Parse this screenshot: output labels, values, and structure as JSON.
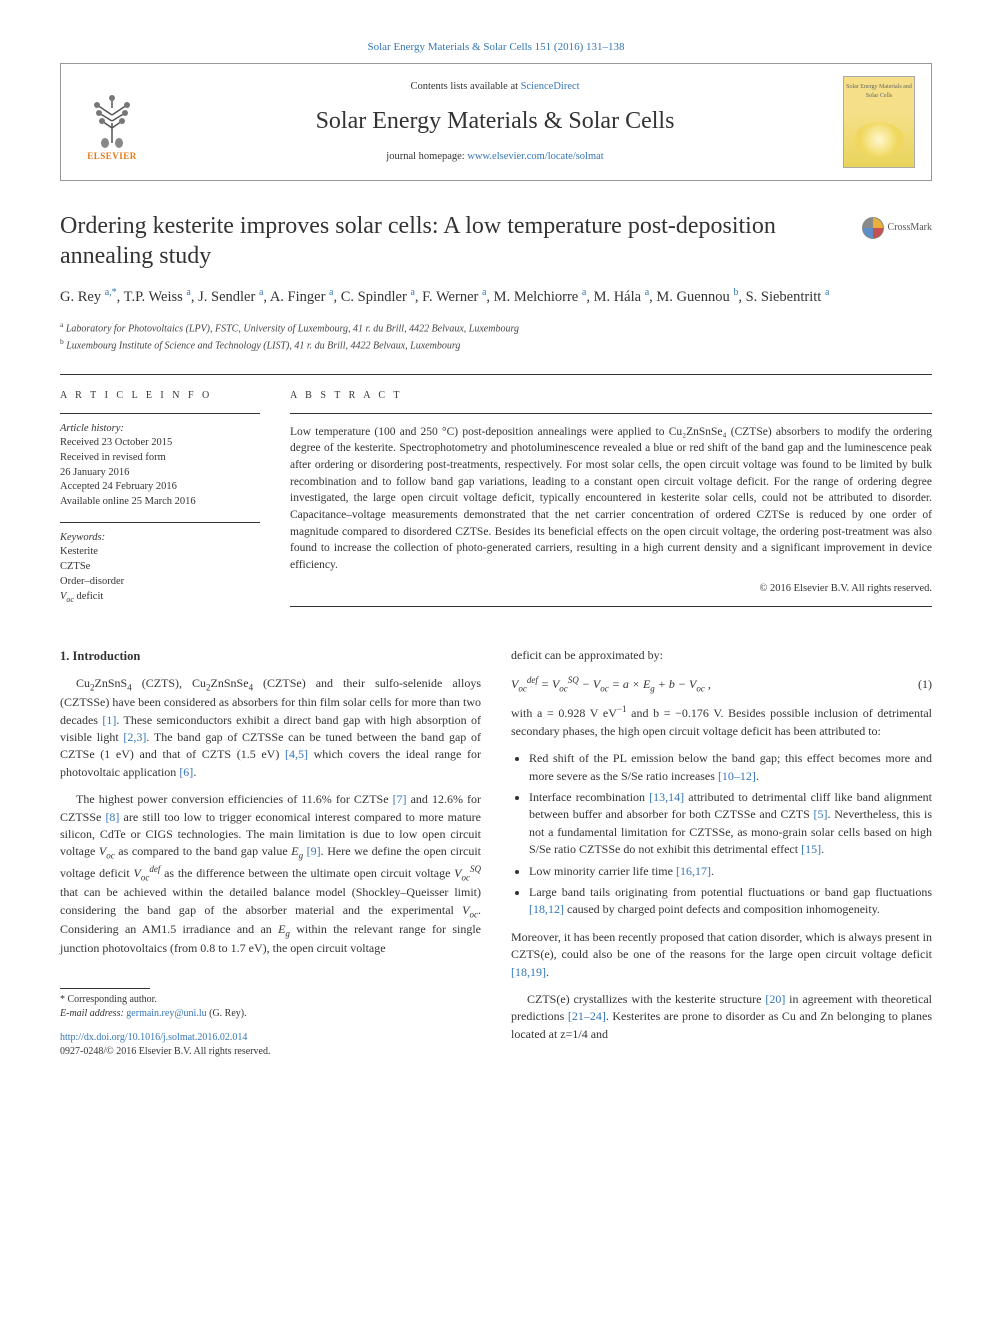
{
  "header": {
    "top_citation": "Solar Energy Materials & Solar Cells 151 (2016) 131–138",
    "contents_prefix": "Contents lists available at ",
    "contents_link": "ScienceDirect",
    "journal_name": "Solar Energy Materials & Solar Cells",
    "homepage_prefix": "journal homepage: ",
    "homepage_link": "www.elsevier.com/locate/solmat",
    "elsevier_label": "ELSEVIER",
    "cover_text": "Solar Energy Materials and Solar Cells",
    "crossmark_label": "CrossMark"
  },
  "article": {
    "title": "Ordering kesterite improves solar cells: A low temperature post-deposition annealing study",
    "authors_html": "G. Rey <sup class='author-link'>a,</sup><sup>*</sup>, T.P. Weiss <sup class='author-link'>a</sup>, J. Sendler <sup class='author-link'>a</sup>, A. Finger <sup class='author-link'>a</sup>, C. Spindler <sup class='author-link'>a</sup>, F. Werner <sup class='author-link'>a</sup>, M. Melchiorre <sup class='author-link'>a</sup>, M. Hála <sup class='author-link'>a</sup>, M. Guennou <sup class='author-link'>b</sup>, S. Siebentritt <sup class='author-link'>a</sup>",
    "affiliations": [
      {
        "marker": "a",
        "text": "Laboratory for Photovoltaics (LPV), FSTC, University of Luxembourg, 41 r. du Brill, 4422 Belvaux, Luxembourg"
      },
      {
        "marker": "b",
        "text": "Luxembourg Institute of Science and Technology (LIST), 41 r. du Brill, 4422 Belvaux, Luxembourg"
      }
    ]
  },
  "article_info": {
    "heading": "A R T I C L E  I N F O",
    "history_label": "Article history:",
    "history": [
      "Received 23 October 2015",
      "Received in revised form",
      "26 January 2016",
      "Accepted 24 February 2016",
      "Available online 25 March 2016"
    ],
    "keywords_label": "Keywords:",
    "keywords": [
      "Kesterite",
      "CZTSe",
      "Order–disorder",
      "V_oc deficit"
    ]
  },
  "abstract": {
    "heading": "A B S T R A C T",
    "text": "Low temperature (100 and 250 °C) post-deposition annealings were applied to Cu₂ZnSnSe₄ (CZTSe) absorbers to modify the ordering degree of the kesterite. Spectrophotometry and photoluminescence revealed a blue or red shift of the band gap and the luminescence peak after ordering or disordering post-treatments, respectively. For most solar cells, the open circuit voltage was found to be limited by bulk recombination and to follow band gap variations, leading to a constant open circuit voltage deficit. For the range of ordering degree investigated, the large open circuit voltage deficit, typically encountered in kesterite solar cells, could not be attributed to disorder. Capacitance–voltage measurements demonstrated that the net carrier concentration of ordered CZTSe is reduced by one order of magnitude compared to disordered CZTSe. Besides its beneficial effects on the open circuit voltage, the ordering post-treatment was also found to increase the collection of photo-generated carriers, resulting in a high current density and a significant improvement in device efficiency.",
    "copyright": "© 2016 Elsevier B.V. All rights reserved."
  },
  "body": {
    "intro_heading": "1.  Introduction",
    "left": {
      "p1": "Cu₂ZnSnS₄ (CZTS), Cu₂ZnSnSe₄ (CZTSe) and their sulfo-selenide alloys (CZTSSe) have been considered as absorbers for thin film solar cells for more than two decades [1]. These semiconductors exhibit a direct band gap with high absorption of visible light [2,3]. The band gap of CZTSSe can be tuned between the band gap of CZTSe (1 eV) and that of CZTS (1.5 eV) [4,5] which covers the ideal range for photovoltaic application [6].",
      "p2": "The highest power conversion efficiencies of 11.6% for CZTSe [7] and 12.6% for CZTSSe [8] are still too low to trigger economical interest compared to more mature silicon, CdTe or CIGS technologies. The main limitation is due to low open circuit voltage V_oc as compared to the band gap value E_g [9]. Here we define the open circuit voltage deficit V_oc^def as the difference between the ultimate open circuit voltage V_oc^SQ that can be achieved within the detailed balance model (Shockley–Queisser limit) considering the band gap of the absorber material and the experimental V_oc. Considering an AM1.5 irradiance and an E_g within the relevant range for single junction photovoltaics (from 0.8 to 1.7 eV), the open circuit voltage"
    },
    "right": {
      "p1": "deficit can be approximated by:",
      "eq": "V_oc^def = V_oc^SQ − V_oc = a × E_g + b − V_oc ,",
      "eq_num": "(1)",
      "p2": "with a = 0.928 V eV⁻¹ and b = −0.176 V. Besides possible inclusion of detrimental secondary phases, the high open circuit voltage deficit has been attributed to:",
      "bullets": [
        "Red shift of the PL emission below the band gap; this effect becomes more and more severe as the S/Se ratio increases [10–12].",
        "Interface recombination [13,14] attributed to detrimental cliff like band alignment between buffer and absorber for both CZTSSe and CZTS [5]. Nevertheless, this is not a fundamental limitation for CZTSSe, as mono-grain solar cells based on high S/Se ratio CZTSSe do not exhibit this detrimental effect [15].",
        "Low minority carrier life time [16,17].",
        "Large band tails originating from potential fluctuations or band gap fluctuations [18,12] caused by charged point defects and composition inhomogeneity."
      ],
      "p3": "Moreover, it has been recently proposed that cation disorder, which is always present in CZTS(e), could also be one of the reasons for the large open circuit voltage deficit [18,19].",
      "p4": "CZTS(e) crystallizes with the kesterite structure [20] in agreement with theoretical predictions [21–24]. Kesterites are prone to disorder as Cu and Zn belonging to planes located at z=1/4 and"
    }
  },
  "footer": {
    "corresponding": "* Corresponding author.",
    "email_label": "E-mail address: ",
    "email": "germain.rey@uni.lu",
    "email_suffix": " (G. Rey).",
    "doi": "http://dx.doi.org/10.1016/j.solmat.2016.02.014",
    "issn_line": "0927-0248/© 2016 Elsevier B.V. All rights reserved."
  },
  "colors": {
    "link": "#3576b5",
    "elsevier_orange": "#e67817",
    "text": "#333333",
    "border": "#999999"
  }
}
